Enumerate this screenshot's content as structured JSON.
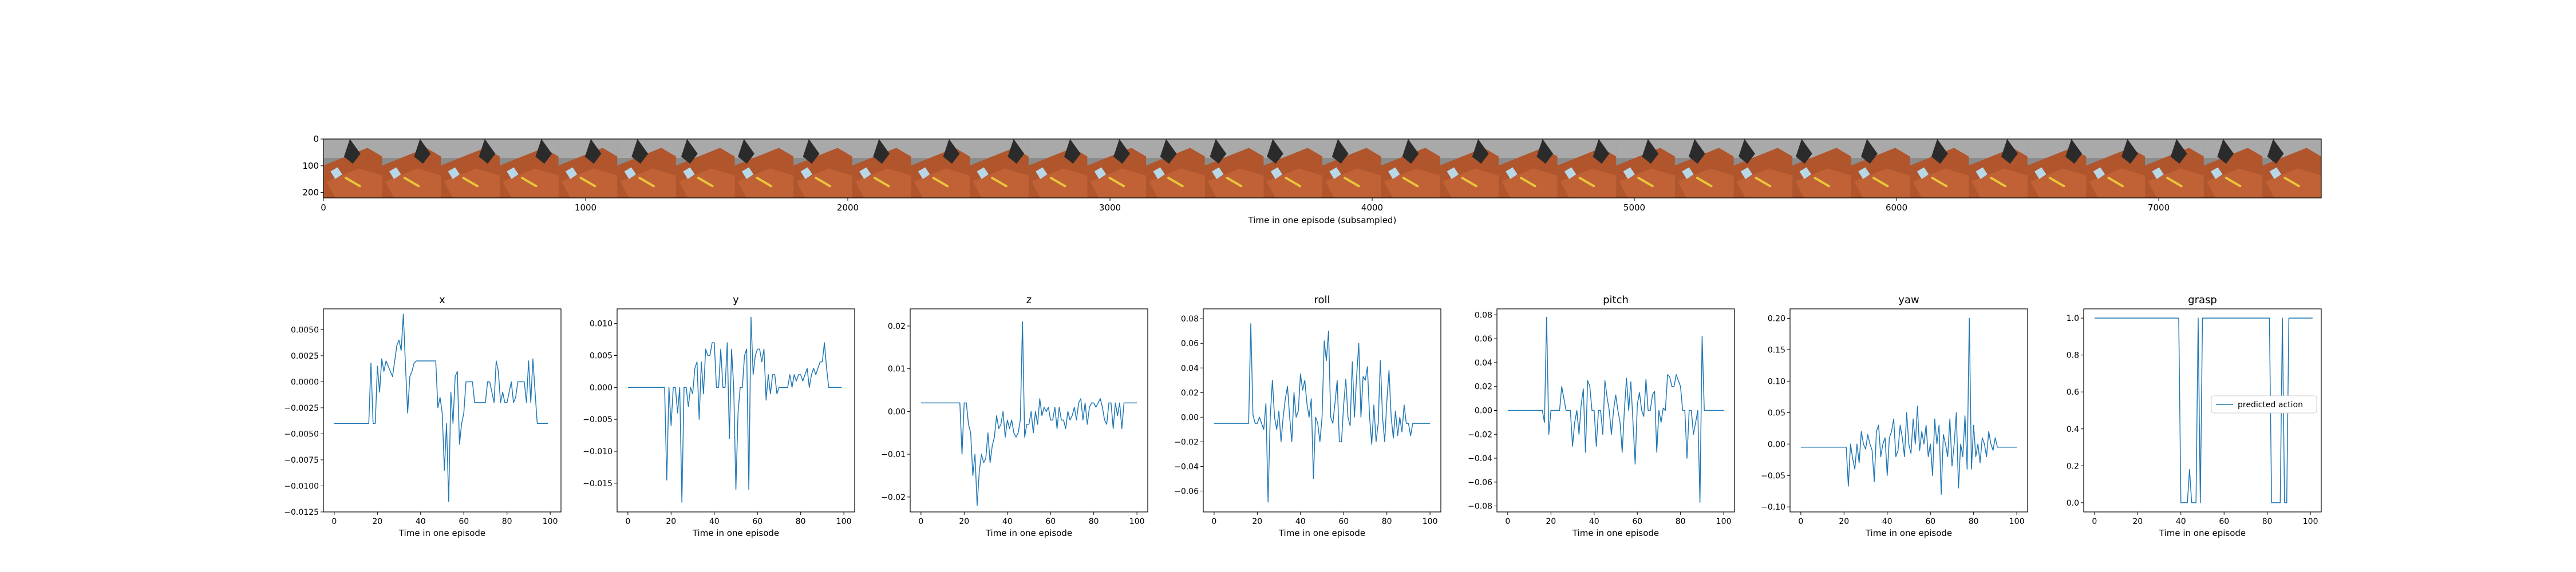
{
  "strip": {
    "xlabel": "Time in one episode (subsampled)",
    "xticks": [
      0,
      1000,
      2000,
      3000,
      4000,
      5000,
      6000,
      7000
    ],
    "yticks": [
      0,
      100,
      200
    ],
    "xlim": [
      0,
      7620
    ],
    "ylim": [
      0,
      220
    ],
    "frame_count": 34
  },
  "chart_data": [
    {
      "type": "line",
      "title": "x",
      "xlabel": "Time in one episode",
      "xlim": [
        -5,
        105
      ],
      "ylim": [
        -0.0125,
        0.007
      ],
      "xticks": [
        0,
        20,
        40,
        60,
        80,
        100
      ],
      "yticks": [
        -0.0125,
        -0.01,
        -0.0075,
        -0.005,
        -0.0025,
        0.0,
        0.0025,
        0.005
      ],
      "ytick_labels": [
        "−0.0125",
        "−0.0100",
        "−0.0075",
        "−0.0050",
        "−0.0025",
        "0.0000",
        "0.0025",
        "0.0050"
      ],
      "series": [
        {
          "values": [
            -0.004,
            -0.004,
            -0.004,
            -0.004,
            -0.004,
            -0.004,
            -0.004,
            -0.004,
            -0.004,
            -0.004,
            -0.004,
            -0.004,
            -0.004,
            -0.004,
            -0.004,
            -0.004,
            -0.004,
            0.0018,
            -0.004,
            -0.004,
            0.0015,
            -0.001,
            0.0022,
            0.001,
            0.002,
            0.0015,
            0.001,
            0.0005,
            0.002,
            0.0035,
            0.004,
            0.003,
            0.0065,
            0.0015,
            -0.003,
            0.0005,
            0.001,
            0.0018,
            0.002,
            0.002,
            0.002,
            0.002,
            0.002,
            0.002,
            0.002,
            0.002,
            0.002,
            0.002,
            -0.0025,
            -0.0015,
            -0.003,
            -0.0085,
            -0.004,
            -0.0115,
            -0.001,
            -0.004,
            0.0005,
            0.001,
            -0.006,
            -0.004,
            -0.003,
            0.0,
            0.0,
            0.0,
            0.0,
            -0.002,
            -0.002,
            -0.002,
            -0.002,
            -0.002,
            -0.002,
            0.0,
            0.0,
            -0.001,
            -0.002,
            0.002,
            0.001,
            -0.002,
            -0.001,
            -0.002,
            -0.002,
            -0.001,
            0.0,
            -0.002,
            -0.0015,
            0.0,
            0.0,
            0.0,
            0.0,
            -0.002,
            0.002,
            -0.002,
            0.0022,
            -0.001,
            -0.004,
            -0.004,
            -0.004,
            -0.004,
            -0.004,
            -0.004
          ]
        }
      ]
    },
    {
      "type": "line",
      "title": "y",
      "xlabel": "Time in one episode",
      "xlim": [
        -5,
        105
      ],
      "ylim": [
        -0.0195,
        0.0123
      ],
      "xticks": [
        0,
        20,
        40,
        60,
        80,
        100
      ],
      "yticks": [
        -0.015,
        -0.01,
        -0.005,
        0.0,
        0.005,
        0.01
      ],
      "ytick_labels": [
        "−0.015",
        "−0.010",
        "−0.005",
        "0.000",
        "0.005",
        "0.010"
      ],
      "series": [
        {
          "values": [
            0.0,
            0.0,
            0.0,
            0.0,
            0.0,
            0.0,
            0.0,
            0.0,
            0.0,
            0.0,
            0.0,
            0.0,
            0.0,
            0.0,
            0.0,
            0.0,
            0.0,
            0.0,
            -0.0145,
            0.0,
            -0.006,
            0.0,
            0.0,
            -0.004,
            0.0,
            -0.018,
            0.0,
            0.0,
            -0.003,
            0.0,
            -0.001,
            0.003,
            0.004,
            -0.005,
            0.004,
            -0.001,
            0.006,
            0.005,
            0.005,
            0.007,
            0.007,
            0.0,
            0.0,
            0.006,
            0.0,
            0.0,
            0.007,
            -0.008,
            0.006,
            0.0,
            -0.016,
            -0.004,
            0.0,
            0.0,
            0.005,
            0.006,
            -0.016,
            0.011,
            0.002,
            0.005,
            0.006,
            0.006,
            0.004,
            0.006,
            -0.002,
            0.002,
            -0.001,
            0.002,
            0.002,
            -0.001,
            0.0,
            0.0,
            0.0,
            0.0,
            0.0,
            0.002,
            0.0,
            0.002,
            0.001,
            0.002,
            0.002,
            0.001,
            0.002,
            0.003,
            0.0,
            0.002,
            0.003,
            0.002,
            0.003,
            0.004,
            0.004,
            0.007,
            0.003,
            0.0,
            0.0,
            0.0,
            0.0,
            0.0,
            0.0,
            0.0
          ]
        }
      ]
    },
    {
      "type": "line",
      "title": "z",
      "xlabel": "Time in one episode",
      "xlim": [
        -5,
        105
      ],
      "ylim": [
        -0.0235,
        0.024
      ],
      "xticks": [
        0,
        20,
        40,
        60,
        80,
        100
      ],
      "yticks": [
        -0.02,
        -0.01,
        0.0,
        0.01,
        0.02
      ],
      "ytick_labels": [
        "−0.02",
        "−0.01",
        "0.00",
        "0.01",
        "0.02"
      ],
      "series": [
        {
          "values": [
            0.002,
            0.002,
            0.002,
            0.002,
            0.002,
            0.002,
            0.002,
            0.002,
            0.002,
            0.002,
            0.002,
            0.002,
            0.002,
            0.002,
            0.002,
            0.002,
            0.002,
            0.002,
            0.002,
            -0.01,
            0.002,
            0.002,
            -0.003,
            -0.005,
            -0.015,
            -0.01,
            -0.022,
            -0.014,
            -0.01,
            -0.012,
            -0.011,
            -0.005,
            -0.012,
            -0.008,
            -0.006,
            -0.001,
            -0.004,
            -0.003,
            0.0,
            -0.006,
            -0.002,
            -0.004,
            -0.002,
            -0.005,
            -0.006,
            -0.005,
            -0.002,
            0.021,
            -0.006,
            -0.003,
            -0.003,
            0.0,
            -0.005,
            0.0,
            -0.003,
            0.003,
            -0.001,
            0.001,
            0.0,
            0.001,
            -0.002,
            -0.002,
            0.001,
            -0.004,
            0.001,
            -0.002,
            -0.002,
            -0.004,
            0.0,
            -0.002,
            -0.001,
            0.001,
            -0.002,
            0.002,
            0.003,
            -0.002,
            0.002,
            -0.003,
            0.001,
            0.002,
            0.002,
            0.001,
            0.002,
            0.003,
            0.001,
            -0.002,
            -0.003,
            0.002,
            0.002,
            -0.004,
            0.002,
            -0.001,
            0.002,
            -0.004,
            0.002,
            0.002,
            0.002,
            0.002,
            0.002,
            0.002,
            0.002
          ]
        }
      ]
    },
    {
      "type": "line",
      "title": "roll",
      "xlabel": "Time in one episode",
      "xlim": [
        -5,
        105
      ],
      "ylim": [
        -0.077,
        0.088
      ],
      "xticks": [
        0,
        20,
        40,
        60,
        80,
        100
      ],
      "yticks": [
        -0.06,
        -0.04,
        -0.02,
        0.0,
        0.02,
        0.04,
        0.06,
        0.08
      ],
      "ytick_labels": [
        "−0.06",
        "−0.04",
        "−0.02",
        "0.00",
        "0.02",
        "0.04",
        "0.06",
        "0.08"
      ],
      "series": [
        {
          "values": [
            -0.005,
            -0.005,
            -0.005,
            -0.005,
            -0.005,
            -0.005,
            -0.005,
            -0.005,
            -0.005,
            -0.005,
            -0.005,
            -0.005,
            -0.005,
            -0.005,
            -0.005,
            -0.005,
            -0.005,
            0.076,
            0.002,
            -0.005,
            -0.005,
            0.0,
            -0.005,
            -0.01,
            0.011,
            -0.069,
            0.0,
            0.03,
            0.0,
            -0.01,
            0.005,
            -0.02,
            0.0,
            0.015,
            0.025,
            0.0,
            -0.02,
            0.02,
            0.0,
            0.005,
            0.035,
            0.022,
            0.03,
            0.011,
            0.0,
            0.015,
            -0.05,
            0.0,
            -0.005,
            -0.02,
            0.0,
            0.062,
            0.046,
            0.07,
            0.0,
            -0.005,
            0.012,
            0.03,
            -0.02,
            -0.02,
            0.01,
            0.031,
            0.0,
            -0.007,
            0.045,
            0.0,
            0.033,
            0.06,
            0.0,
            0.033,
            0.03,
            0.041,
            0.0,
            -0.022,
            0.01,
            -0.02,
            -0.005,
            0.046,
            0.0,
            -0.02,
            0.013,
            0.038,
            0.0,
            -0.017,
            0.005,
            -0.015,
            0.0,
            -0.012,
            0.01,
            -0.005,
            -0.005,
            -0.015,
            -0.005,
            -0.005,
            -0.005,
            -0.005,
            -0.005,
            -0.005,
            -0.005,
            -0.005,
            -0.005
          ]
        }
      ]
    },
    {
      "type": "line",
      "title": "pitch",
      "xlabel": "Time in one episode",
      "xlim": [
        -5,
        105
      ],
      "ylim": [
        -0.085,
        0.085
      ],
      "xticks": [
        0,
        20,
        40,
        60,
        80,
        100
      ],
      "yticks": [
        -0.08,
        -0.06,
        -0.04,
        -0.02,
        0.0,
        0.02,
        0.04,
        0.06,
        0.08
      ],
      "ytick_labels": [
        "−0.08",
        "−0.06",
        "−0.04",
        "−0.02",
        "0.00",
        "0.02",
        "0.04",
        "0.06",
        "0.08"
      ],
      "series": [
        {
          "values": [
            0.0,
            0.0,
            0.0,
            0.0,
            0.0,
            0.0,
            0.0,
            0.0,
            0.0,
            0.0,
            0.0,
            0.0,
            0.0,
            0.0,
            0.0,
            0.0,
            0.0,
            -0.01,
            0.078,
            -0.02,
            0.0,
            0.0,
            0.0,
            0.0,
            0.0,
            0.02,
            0.01,
            0.0,
            0.0,
            0.0,
            -0.03,
            -0.01,
            0.0,
            -0.02,
            0.005,
            0.018,
            -0.035,
            0.025,
            0.02,
            0.0,
            0.0,
            -0.03,
            0.0,
            0.0,
            -0.02,
            0.025,
            0.011,
            0.0,
            -0.02,
            0.0,
            0.013,
            0.0,
            -0.01,
            -0.035,
            0.0,
            0.027,
            0.0,
            0.024,
            -0.01,
            -0.045,
            0.005,
            0.015,
            0.0,
            -0.005,
            0.026,
            0.0,
            0.0,
            0.013,
            0.016,
            -0.035,
            0.0,
            -0.01,
            0.002,
            0.0,
            0.03,
            0.028,
            0.02,
            0.02,
            0.03,
            0.025,
            0.02,
            0.0,
            0.0,
            -0.04,
            0.0,
            0.0,
            -0.02,
            -0.01,
            0.0,
            -0.077,
            0.062,
            0.0,
            0.0,
            0.0,
            0.0,
            0.0,
            0.0,
            0.0,
            0.0,
            0.0,
            0.0
          ]
        }
      ]
    },
    {
      "type": "line",
      "title": "yaw",
      "xlabel": "Time in one episode",
      "xlim": [
        -5,
        105
      ],
      "ylim": [
        -0.108,
        0.215
      ],
      "xticks": [
        0,
        20,
        40,
        60,
        80,
        100
      ],
      "yticks": [
        -0.1,
        -0.05,
        0.0,
        0.05,
        0.1,
        0.15,
        0.2
      ],
      "ytick_labels": [
        "−0.10",
        "−0.05",
        "0.00",
        "0.05",
        "0.10",
        "0.15",
        "0.20"
      ],
      "series": [
        {
          "values": [
            -0.005,
            -0.005,
            -0.005,
            -0.005,
            -0.005,
            -0.005,
            -0.005,
            -0.005,
            -0.005,
            -0.005,
            -0.005,
            -0.005,
            -0.005,
            -0.005,
            -0.005,
            -0.005,
            -0.005,
            -0.005,
            -0.005,
            -0.005,
            -0.005,
            -0.005,
            -0.067,
            0.0,
            -0.023,
            -0.04,
            0.0,
            -0.03,
            0.02,
            0.0,
            -0.008,
            0.015,
            0.0,
            -0.01,
            -0.06,
            0.02,
            0.03,
            -0.02,
            0.0,
            0.01,
            -0.05,
            0.01,
            0.02,
            0.04,
            -0.02,
            -0.01,
            0.03,
            0.01,
            -0.02,
            0.05,
            0.0,
            -0.015,
            0.04,
            0.0,
            0.06,
            -0.01,
            0.02,
            0.0,
            0.03,
            -0.02,
            0.0,
            -0.05,
            0.04,
            0.0,
            0.03,
            -0.08,
            0.015,
            0.0,
            -0.02,
            0.04,
            -0.035,
            0.0,
            0.05,
            -0.07,
            0.0,
            -0.02,
            0.045,
            -0.04,
            0.2,
            -0.04,
            0.03,
            -0.02,
            0.0,
            -0.03,
            0.01,
            0.0,
            -0.02,
            0.02,
            0.0,
            -0.01,
            0.01,
            -0.005,
            -0.005,
            -0.005,
            -0.005,
            -0.005,
            -0.005,
            -0.005,
            -0.005,
            -0.005,
            -0.005
          ]
        }
      ]
    },
    {
      "type": "line",
      "title": "grasp",
      "xlabel": "Time in one episode",
      "xlim": [
        -5,
        105
      ],
      "ylim": [
        -0.05,
        1.05
      ],
      "xticks": [
        0,
        20,
        40,
        60,
        80,
        100
      ],
      "yticks": [
        0.0,
        0.2,
        0.4,
        0.6,
        0.8,
        1.0
      ],
      "ytick_labels": [
        "0.0",
        "0.2",
        "0.4",
        "0.6",
        "0.8",
        "1.0"
      ],
      "legend": "predicted action",
      "legend_position": "center-right",
      "series": [
        {
          "name": "predicted action",
          "values": [
            1,
            1,
            1,
            1,
            1,
            1,
            1,
            1,
            1,
            1,
            1,
            1,
            1,
            1,
            1,
            1,
            1,
            1,
            1,
            1,
            1,
            1,
            1,
            1,
            1,
            1,
            1,
            1,
            1,
            1,
            1,
            1,
            1,
            1,
            1,
            1,
            1,
            1,
            1,
            1,
            0,
            0,
            0,
            0,
            0.18,
            0,
            0,
            0,
            1,
            0,
            1,
            1,
            1,
            1,
            1,
            1,
            1,
            1,
            1,
            1,
            1,
            1,
            1,
            1,
            1,
            1,
            1,
            1,
            1,
            1,
            1,
            1,
            1,
            1,
            1,
            1,
            1,
            1,
            1,
            1,
            1,
            1,
            0,
            0,
            0,
            0,
            0,
            1,
            0,
            0,
            1,
            1,
            1,
            1,
            1,
            1,
            1,
            1,
            1,
            1,
            1,
            1
          ]
        }
      ]
    }
  ]
}
